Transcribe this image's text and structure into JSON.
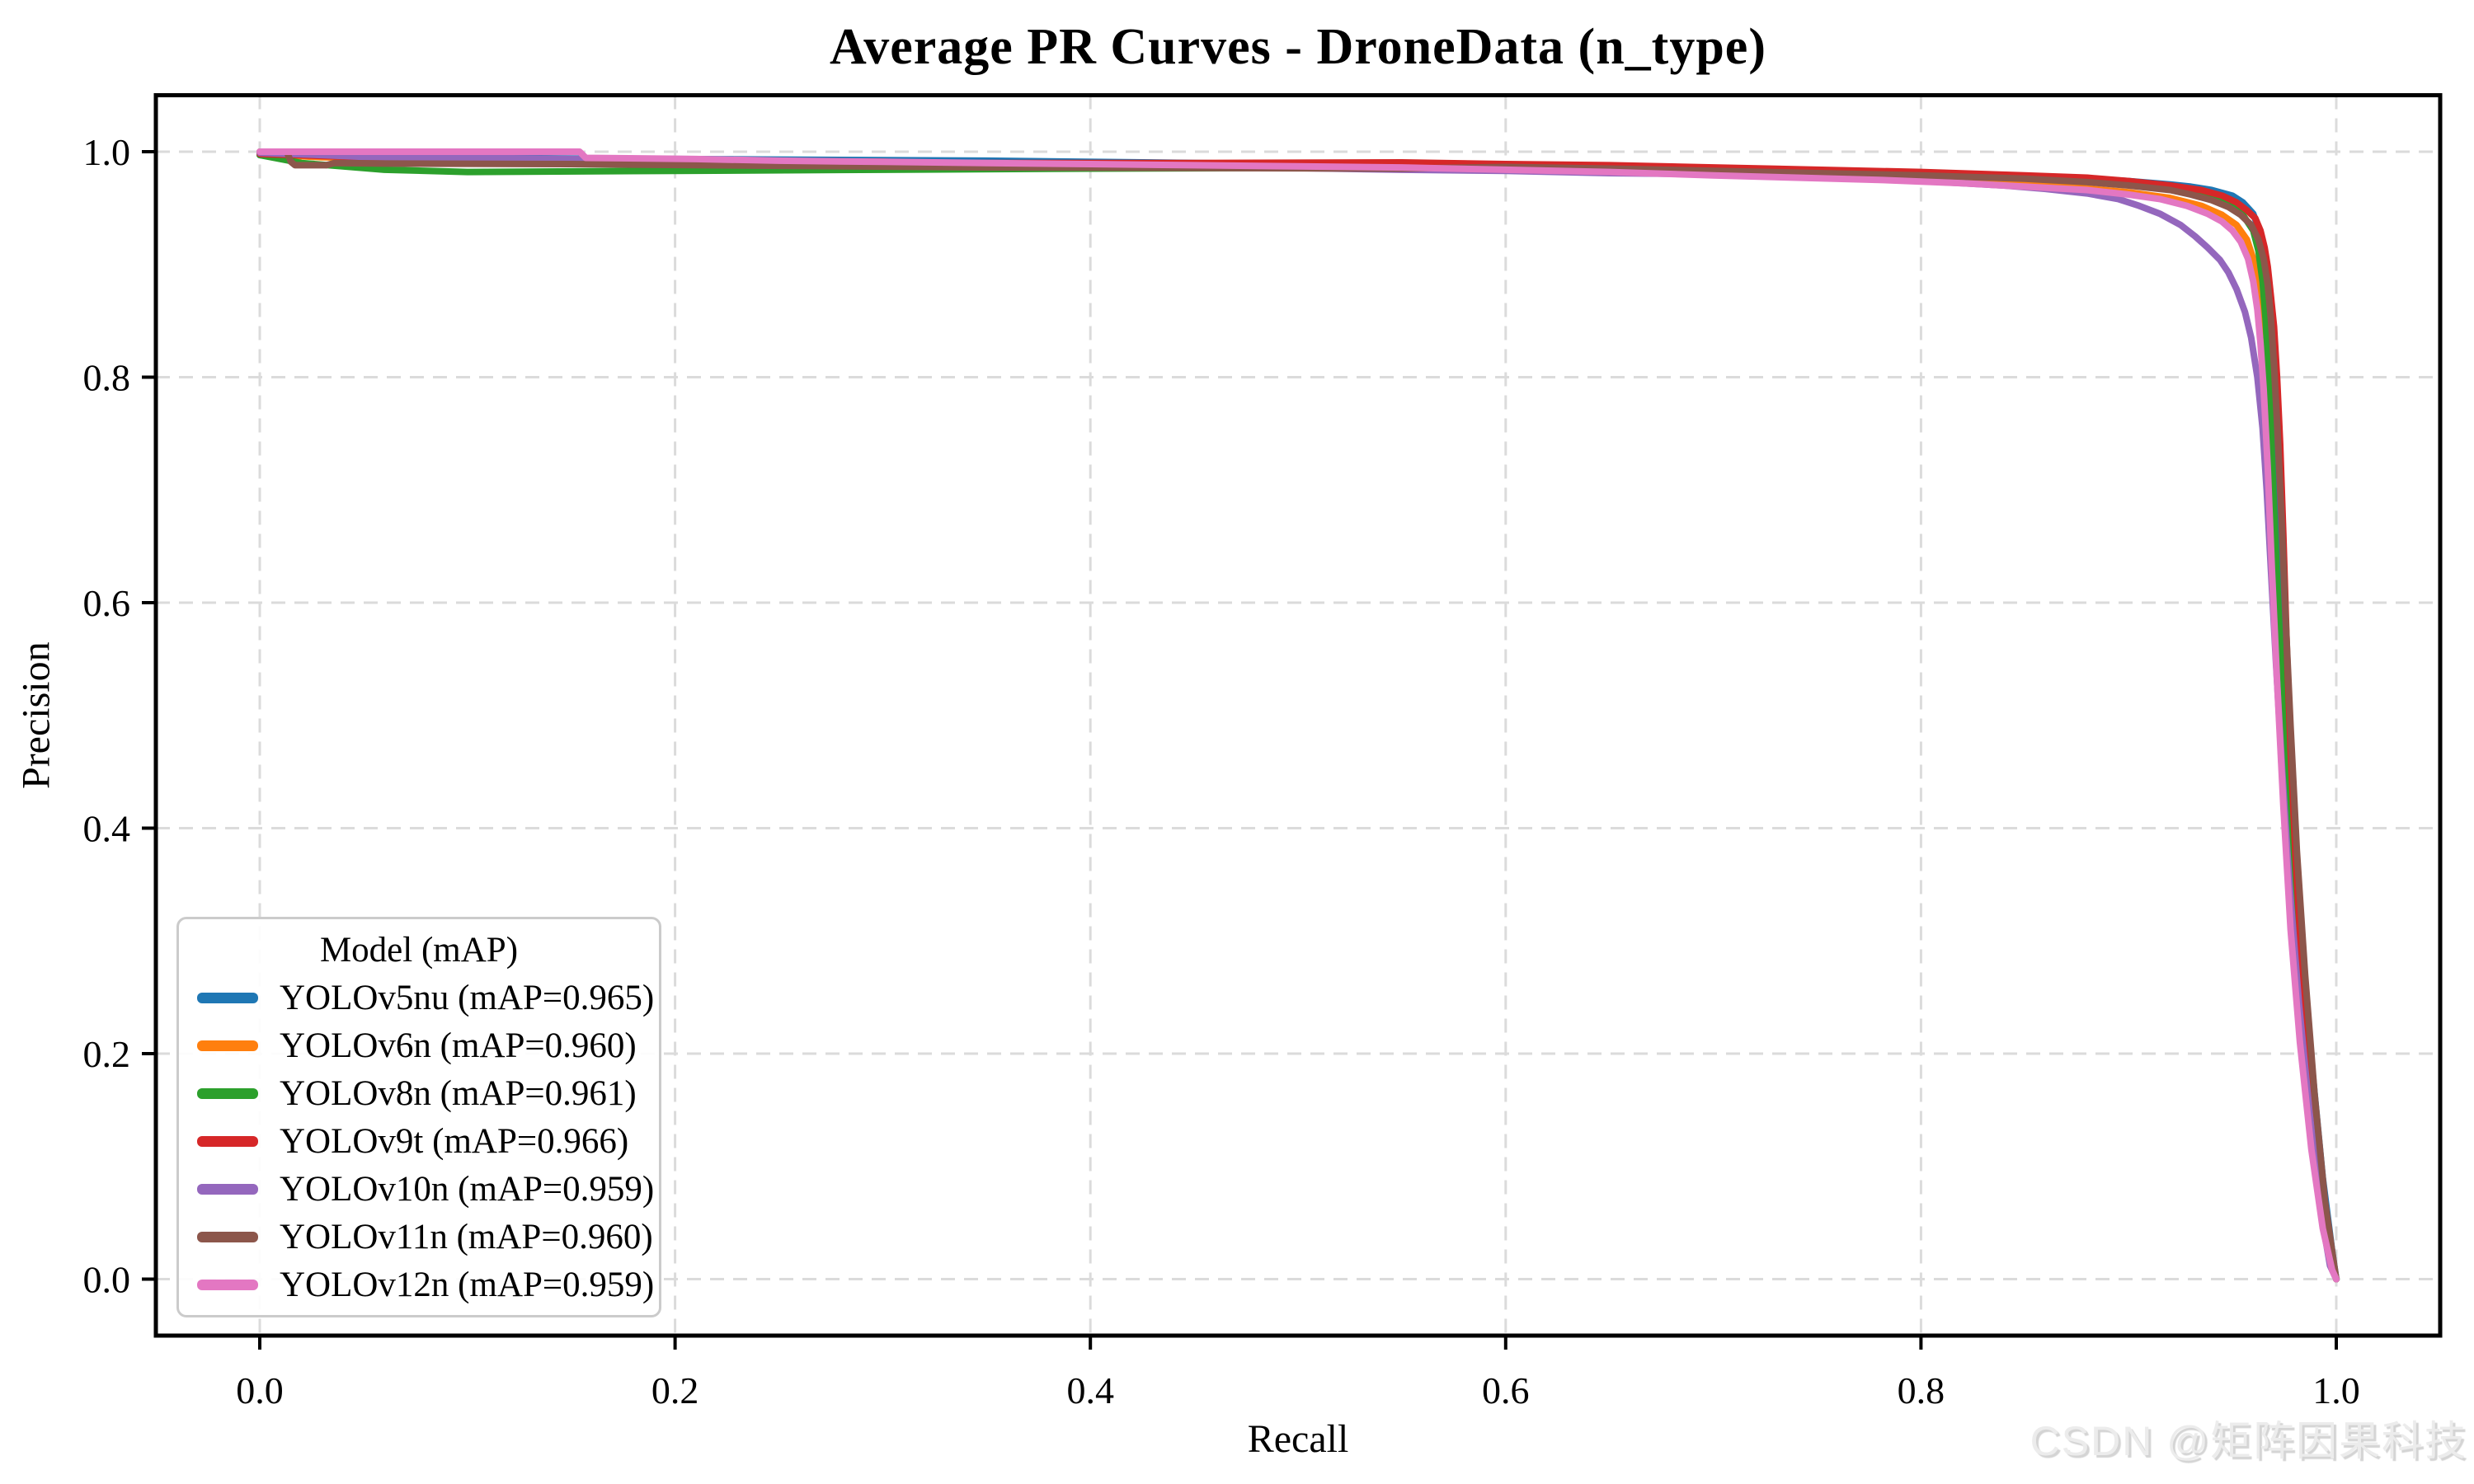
{
  "page": {
    "watermark": "CSDN @矩阵因果科技"
  },
  "chart_data": {
    "type": "line",
    "title": "Average PR Curves - DroneData (n_type)",
    "xlabel": "Recall",
    "ylabel": "Precision",
    "xlim": [
      -0.05,
      1.05
    ],
    "ylim": [
      -0.05,
      1.05
    ],
    "xticks": [
      0.0,
      0.2,
      0.4,
      0.6,
      0.8,
      1.0
    ],
    "yticks": [
      0.0,
      0.2,
      0.4,
      0.6,
      0.8,
      1.0
    ],
    "tick_format": "0.1f",
    "grid": "dashed",
    "grid_color": "#dbdbdb",
    "legend": {
      "title": "Model (mAP)",
      "position": "lower left"
    },
    "series": [
      {
        "model": "YOLOv5nu",
        "mAP": 0.965,
        "label": "YOLOv5nu (mAP=0.965)",
        "color": "#1f77b4",
        "points": [
          [
            0,
            0.997
          ],
          [
            0.05,
            0.995
          ],
          [
            0.15,
            0.994
          ],
          [
            0.25,
            0.993
          ],
          [
            0.35,
            0.992
          ],
          [
            0.45,
            0.99
          ],
          [
            0.55,
            0.988
          ],
          [
            0.65,
            0.986
          ],
          [
            0.7,
            0.985
          ],
          [
            0.75,
            0.983
          ],
          [
            0.76,
            0.981
          ],
          [
            0.8,
            0.98
          ],
          [
            0.84,
            0.978
          ],
          [
            0.88,
            0.976
          ],
          [
            0.9,
            0.974
          ],
          [
            0.92,
            0.971
          ],
          [
            0.93,
            0.969
          ],
          [
            0.94,
            0.966
          ],
          [
            0.95,
            0.961
          ],
          [
            0.955,
            0.955
          ],
          [
            0.96,
            0.945
          ],
          [
            0.963,
            0.93
          ],
          [
            0.966,
            0.905
          ],
          [
            0.9675,
            0.875
          ],
          [
            0.969,
            0.83
          ],
          [
            0.9705,
            0.77
          ],
          [
            0.972,
            0.7
          ],
          [
            0.974,
            0.6
          ],
          [
            0.9765,
            0.5
          ],
          [
            0.9795,
            0.4
          ],
          [
            0.9835,
            0.29
          ],
          [
            0.9885,
            0.185
          ],
          [
            0.9935,
            0.09
          ],
          [
            0.998,
            0.025
          ],
          [
            1,
            0
          ]
        ]
      },
      {
        "model": "YOLOv6n",
        "mAP": 0.96,
        "label": "YOLOv6n (mAP=0.960)",
        "color": "#ff7f0e",
        "points": [
          [
            0,
            0.998
          ],
          [
            0.03,
            0.995
          ],
          [
            0.1,
            0.9935
          ],
          [
            0.2,
            0.9925
          ],
          [
            0.235,
            0.991
          ],
          [
            0.3,
            0.99
          ],
          [
            0.4,
            0.989
          ],
          [
            0.5,
            0.9865
          ],
          [
            0.6,
            0.984
          ],
          [
            0.65,
            0.982
          ],
          [
            0.7,
            0.98
          ],
          [
            0.75,
            0.978
          ],
          [
            0.8,
            0.975
          ],
          [
            0.84,
            0.972
          ],
          [
            0.87,
            0.969
          ],
          [
            0.9,
            0.964
          ],
          [
            0.92,
            0.959
          ],
          [
            0.935,
            0.952
          ],
          [
            0.945,
            0.944
          ],
          [
            0.952,
            0.935
          ],
          [
            0.957,
            0.922
          ],
          [
            0.96,
            0.905
          ],
          [
            0.9625,
            0.88
          ],
          [
            0.9645,
            0.845
          ],
          [
            0.966,
            0.8
          ],
          [
            0.9675,
            0.74
          ],
          [
            0.969,
            0.66
          ],
          [
            0.971,
            0.56
          ],
          [
            0.9735,
            0.46
          ],
          [
            0.977,
            0.35
          ],
          [
            0.9815,
            0.245
          ],
          [
            0.987,
            0.15
          ],
          [
            0.993,
            0.06
          ],
          [
            0.998,
            0.012
          ],
          [
            1,
            0
          ]
        ]
      },
      {
        "model": "YOLOv8n",
        "mAP": 0.961,
        "label": "YOLOv8n (mAP=0.961)",
        "color": "#2ca02c",
        "points": [
          [
            0,
            0.997
          ],
          [
            0.02,
            0.99
          ],
          [
            0.04,
            0.987
          ],
          [
            0.06,
            0.984
          ],
          [
            0.1,
            0.982
          ],
          [
            0.2,
            0.983
          ],
          [
            0.3,
            0.984
          ],
          [
            0.4,
            0.985
          ],
          [
            0.5,
            0.9855
          ],
          [
            0.6,
            0.985
          ],
          [
            0.7,
            0.984
          ],
          [
            0.75,
            0.983
          ],
          [
            0.8,
            0.981
          ],
          [
            0.85,
            0.978
          ],
          [
            0.88,
            0.975
          ],
          [
            0.9,
            0.972
          ],
          [
            0.92,
            0.968
          ],
          [
            0.93,
            0.964
          ],
          [
            0.94,
            0.959
          ],
          [
            0.95,
            0.952
          ],
          [
            0.955,
            0.944
          ],
          [
            0.96,
            0.93
          ],
          [
            0.9625,
            0.912
          ],
          [
            0.9645,
            0.885
          ],
          [
            0.966,
            0.85
          ],
          [
            0.9675,
            0.8
          ],
          [
            0.969,
            0.73
          ],
          [
            0.971,
            0.64
          ],
          [
            0.9735,
            0.54
          ],
          [
            0.9765,
            0.43
          ],
          [
            0.98,
            0.32
          ],
          [
            0.9855,
            0.205
          ],
          [
            0.991,
            0.1
          ],
          [
            0.9965,
            0.025
          ],
          [
            1,
            0
          ]
        ]
      },
      {
        "model": "YOLOv9t",
        "mAP": 0.966,
        "label": "YOLOv9t (mAP=0.966)",
        "color": "#d62728",
        "points": [
          [
            0,
            0.998
          ],
          [
            0.05,
            0.995
          ],
          [
            0.1,
            0.994
          ],
          [
            0.2,
            0.9925
          ],
          [
            0.3,
            0.991
          ],
          [
            0.32,
            0.99
          ],
          [
            0.45,
            0.99
          ],
          [
            0.55,
            0.9905
          ],
          [
            0.6,
            0.989
          ],
          [
            0.65,
            0.988
          ],
          [
            0.7,
            0.986
          ],
          [
            0.75,
            0.984
          ],
          [
            0.8,
            0.982
          ],
          [
            0.85,
            0.979
          ],
          [
            0.88,
            0.977
          ],
          [
            0.9,
            0.974
          ],
          [
            0.92,
            0.97
          ],
          [
            0.935,
            0.966
          ],
          [
            0.945,
            0.961
          ],
          [
            0.952,
            0.955
          ],
          [
            0.957,
            0.948
          ],
          [
            0.961,
            0.941
          ],
          [
            0.9635,
            0.93
          ],
          [
            0.9655,
            0.915
          ],
          [
            0.967,
            0.898
          ],
          [
            0.9685,
            0.872
          ],
          [
            0.97,
            0.845
          ],
          [
            0.9715,
            0.8
          ],
          [
            0.973,
            0.74
          ],
          [
            0.9745,
            0.66
          ],
          [
            0.976,
            0.57
          ],
          [
            0.978,
            0.47
          ],
          [
            0.9805,
            0.37
          ],
          [
            0.984,
            0.26
          ],
          [
            0.9885,
            0.16
          ],
          [
            0.9935,
            0.07
          ],
          [
            0.998,
            0.015
          ],
          [
            1,
            0
          ]
        ]
      },
      {
        "model": "YOLOv10n",
        "mAP": 0.959,
        "label": "YOLOv10n (mAP=0.959)",
        "color": "#9467bd",
        "points": [
          [
            0,
            0.999
          ],
          [
            0.03,
            0.997
          ],
          [
            0.05,
            0.9955
          ],
          [
            0.1,
            0.9945
          ],
          [
            0.16,
            0.9935
          ],
          [
            0.25,
            0.991
          ],
          [
            0.35,
            0.989
          ],
          [
            0.45,
            0.987
          ],
          [
            0.55,
            0.984
          ],
          [
            0.6,
            0.983
          ],
          [
            0.65,
            0.981
          ],
          [
            0.7,
            0.98
          ],
          [
            0.75,
            0.978
          ],
          [
            0.78,
            0.976
          ],
          [
            0.81,
            0.973
          ],
          [
            0.84,
            0.97
          ],
          [
            0.86,
            0.967
          ],
          [
            0.88,
            0.963
          ],
          [
            0.895,
            0.958
          ],
          [
            0.905,
            0.952
          ],
          [
            0.915,
            0.945
          ],
          [
            0.925,
            0.935
          ],
          [
            0.932,
            0.925
          ],
          [
            0.938,
            0.915
          ],
          [
            0.944,
            0.904
          ],
          [
            0.948,
            0.893
          ],
          [
            0.952,
            0.878
          ],
          [
            0.956,
            0.858
          ],
          [
            0.959,
            0.835
          ],
          [
            0.962,
            0.8
          ],
          [
            0.9645,
            0.755
          ],
          [
            0.9665,
            0.7
          ],
          [
            0.9685,
            0.63
          ],
          [
            0.971,
            0.545
          ],
          [
            0.974,
            0.45
          ],
          [
            0.9775,
            0.35
          ],
          [
            0.982,
            0.245
          ],
          [
            0.987,
            0.15
          ],
          [
            0.9925,
            0.06
          ],
          [
            0.997,
            0.012
          ],
          [
            1,
            0
          ]
        ]
      },
      {
        "model": "YOLOv11n",
        "mAP": 0.96,
        "label": "YOLOv11n (mAP=0.960)",
        "color": "#8c564b",
        "points": [
          [
            0,
            1
          ],
          [
            0.013,
            1
          ],
          [
            0.015,
            0.991
          ],
          [
            0.017,
            0.988
          ],
          [
            0.032,
            0.988
          ],
          [
            0.036,
            0.99
          ],
          [
            0.06,
            0.9895
          ],
          [
            0.15,
            0.989
          ],
          [
            0.25,
            0.9875
          ],
          [
            0.35,
            0.986
          ],
          [
            0.45,
            0.9855
          ],
          [
            0.55,
            0.985
          ],
          [
            0.6,
            0.9865
          ],
          [
            0.65,
            0.985
          ],
          [
            0.7,
            0.983
          ],
          [
            0.75,
            0.981
          ],
          [
            0.8,
            0.979
          ],
          [
            0.85,
            0.976
          ],
          [
            0.88,
            0.973
          ],
          [
            0.9,
            0.97
          ],
          [
            0.92,
            0.966
          ],
          [
            0.93,
            0.962
          ],
          [
            0.94,
            0.957
          ],
          [
            0.948,
            0.951
          ],
          [
            0.954,
            0.944
          ],
          [
            0.959,
            0.935
          ],
          [
            0.9625,
            0.922
          ],
          [
            0.965,
            0.905
          ],
          [
            0.967,
            0.882
          ],
          [
            0.9685,
            0.852
          ],
          [
            0.97,
            0.81
          ],
          [
            0.9715,
            0.76
          ],
          [
            0.9735,
            0.68
          ],
          [
            0.9755,
            0.59
          ],
          [
            0.978,
            0.49
          ],
          [
            0.981,
            0.38
          ],
          [
            0.985,
            0.27
          ],
          [
            0.9895,
            0.165
          ],
          [
            0.9945,
            0.07
          ],
          [
            0.999,
            0.012
          ],
          [
            1,
            0
          ]
        ]
      },
      {
        "model": "YOLOv12n",
        "mAP": 0.959,
        "label": "YOLOv12n (mAP=0.959)",
        "color": "#e377c2",
        "points": [
          [
            0,
            1
          ],
          [
            0.154,
            1
          ],
          [
            0.157,
            0.9945
          ],
          [
            0.21,
            0.9935
          ],
          [
            0.25,
            0.992
          ],
          [
            0.3,
            0.991
          ],
          [
            0.35,
            0.99
          ],
          [
            0.4,
            0.989
          ],
          [
            0.45,
            0.988
          ],
          [
            0.5,
            0.987
          ],
          [
            0.55,
            0.986
          ],
          [
            0.6,
            0.984
          ],
          [
            0.65,
            0.982
          ],
          [
            0.7,
            0.979
          ],
          [
            0.74,
            0.977
          ],
          [
            0.78,
            0.975
          ],
          [
            0.82,
            0.972
          ],
          [
            0.85,
            0.969
          ],
          [
            0.88,
            0.966
          ],
          [
            0.9,
            0.962
          ],
          [
            0.915,
            0.958
          ],
          [
            0.928,
            0.952
          ],
          [
            0.938,
            0.945
          ],
          [
            0.945,
            0.938
          ],
          [
            0.95,
            0.93
          ],
          [
            0.954,
            0.92
          ],
          [
            0.9575,
            0.905
          ],
          [
            0.96,
            0.885
          ],
          [
            0.962,
            0.86
          ],
          [
            0.9635,
            0.83
          ],
          [
            0.965,
            0.79
          ],
          [
            0.967,
            0.72
          ],
          [
            0.969,
            0.63
          ],
          [
            0.9715,
            0.53
          ],
          [
            0.9745,
            0.42
          ],
          [
            0.978,
            0.31
          ],
          [
            0.9825,
            0.21
          ],
          [
            0.988,
            0.115
          ],
          [
            0.9935,
            0.045
          ],
          [
            0.998,
            0.008
          ],
          [
            1,
            0
          ]
        ]
      }
    ]
  }
}
